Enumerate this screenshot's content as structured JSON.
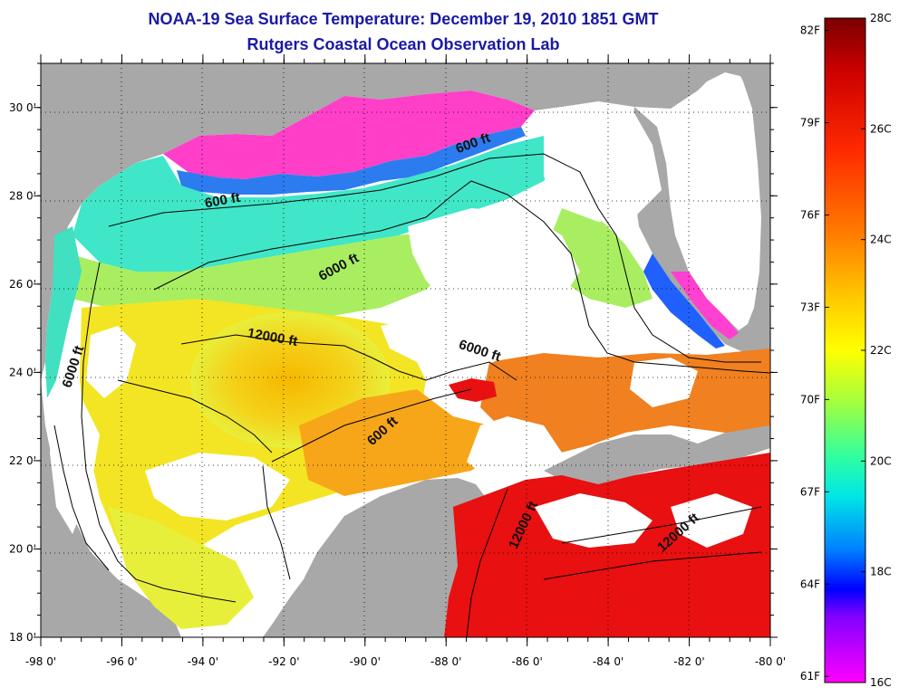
{
  "title": {
    "line1": "NOAA-19 Sea Surface Temperature:  December 19, 2010 1851 GMT",
    "line2": "Rutgers Coastal Ocean Observation Lab"
  },
  "axes": {
    "x_ticks": [
      "-98 0'",
      "-96 0'",
      "-94 0'",
      "-92 0'",
      "-90 0'",
      "-88 0'",
      "-86 0'",
      "-84 0'",
      "-82 0'",
      "-80 0'"
    ],
    "y_ticks": [
      "30 0'",
      "28 0'",
      "26 0'",
      "24 0'",
      "22 0'",
      "20 0'",
      "18 0'"
    ],
    "lon_range": [
      -98,
      -80
    ],
    "lat_range": [
      18,
      31
    ]
  },
  "contour_labels": [
    {
      "text": "600 ft",
      "lon": -93.5,
      "lat": 27.8,
      "rot": -10
    },
    {
      "text": "600 ft",
      "lon": -87.3,
      "lat": 29.1,
      "rot": -20
    },
    {
      "text": "6000 ft",
      "lon": -90.6,
      "lat": 26.3,
      "rot": -28
    },
    {
      "text": "12000 ft",
      "lon": -92.3,
      "lat": 24.7,
      "rot": 10
    },
    {
      "text": "6000 ft",
      "lon": -87.2,
      "lat": 24.4,
      "rot": 18
    },
    {
      "text": "6000 ft",
      "lon": -97.1,
      "lat": 24.1,
      "rot": -72
    },
    {
      "text": "600 ft",
      "lon": -89.5,
      "lat": 22.6,
      "rot": -42
    },
    {
      "text": "12000 ft",
      "lon": -86.0,
      "lat": 20.5,
      "rot": -65
    },
    {
      "text": "12000 ft",
      "lon": -82.2,
      "lat": 20.3,
      "rot": -42
    }
  ],
  "colorbar": {
    "celsius": [
      "28C",
      "26C",
      "24C",
      "22C",
      "20C",
      "18C",
      "16C"
    ],
    "fahrenheit": [
      "82F",
      "79F",
      "76F",
      "73F",
      "70F",
      "67F",
      "64F",
      "61F"
    ],
    "colors": [
      "#7a0000",
      "#cc0000",
      "#ff2a00",
      "#ff8000",
      "#ffc800",
      "#ffff00",
      "#a0ff40",
      "#30ffa0",
      "#00e6e6",
      "#0080ff",
      "#0000ff",
      "#8000ff",
      "#ff00ff"
    ]
  },
  "colors": {
    "land": "#a8a8a8",
    "cloud": "#ffffff",
    "title": "#1a1aa6"
  }
}
